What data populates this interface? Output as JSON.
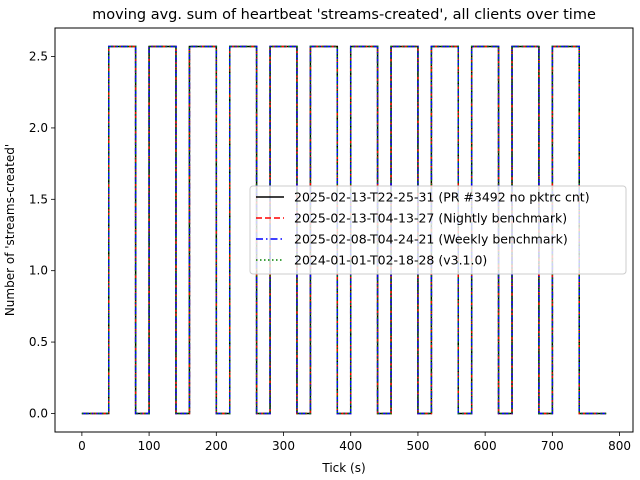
{
  "chart_data": {
    "type": "line",
    "title": "moving avg. sum of heartbeat 'streams-created', all clients over time",
    "xlabel": "Tick (s)",
    "ylabel": "Number of 'streams-created'",
    "xlim": [
      -40,
      820
    ],
    "ylim": [
      -0.13,
      2.7
    ],
    "xticks": [
      0,
      100,
      200,
      300,
      400,
      500,
      600,
      700,
      800
    ],
    "xtick_labels": [
      "0",
      "100",
      "200",
      "300",
      "400",
      "500",
      "600",
      "700",
      "800"
    ],
    "yticks": [
      0.0,
      0.5,
      1.0,
      1.5,
      2.0,
      2.5
    ],
    "ytick_labels": [
      "0.0",
      "0.5",
      "1.0",
      "1.5",
      "2.0",
      "2.5"
    ],
    "grid": false,
    "legend_position": "center-right",
    "series": [
      {
        "name": "2025-02-13-T22-25-31 (PR #3492 no pktrc cnt)",
        "color": "#000000",
        "style": "solid",
        "x": [
          0,
          40,
          40,
          80,
          80,
          100,
          100,
          140,
          140,
          160,
          160,
          200,
          200,
          220,
          220,
          260,
          260,
          280,
          280,
          320,
          320,
          340,
          340,
          380,
          380,
          400,
          400,
          440,
          440,
          460,
          460,
          500,
          500,
          520,
          520,
          560,
          560,
          580,
          580,
          620,
          620,
          640,
          640,
          680,
          680,
          700,
          700,
          740,
          740,
          780
        ],
        "y": [
          0,
          0,
          2.57,
          2.57,
          0,
          0,
          2.57,
          2.57,
          0,
          0,
          2.57,
          2.57,
          0,
          0,
          2.57,
          2.57,
          0,
          0,
          2.57,
          2.57,
          0,
          0,
          2.57,
          2.57,
          0,
          0,
          2.57,
          2.57,
          0,
          0,
          2.57,
          2.57,
          0,
          0,
          2.57,
          2.57,
          0,
          0,
          2.57,
          2.57,
          0,
          0,
          2.57,
          2.57,
          0,
          0,
          2.57,
          2.57,
          0,
          0
        ]
      },
      {
        "name": "2025-02-13-T04-13-27 (Nightly benchmark)",
        "color": "#ff0000",
        "style": "dashed",
        "x": [
          0,
          40,
          40,
          80,
          80,
          100,
          100,
          140,
          140,
          160,
          160,
          200,
          200,
          220,
          220,
          260,
          260,
          280,
          280,
          320,
          320,
          340,
          340,
          380,
          380,
          400,
          400,
          440,
          440,
          460,
          460,
          500,
          500,
          520,
          520,
          560,
          560,
          580,
          580,
          620,
          620,
          640,
          640,
          680,
          680,
          700,
          700,
          740,
          740,
          780
        ],
        "y": [
          0,
          0,
          2.57,
          2.57,
          0,
          0,
          2.57,
          2.57,
          0,
          0,
          2.57,
          2.57,
          0,
          0,
          2.57,
          2.57,
          0,
          0,
          2.57,
          2.57,
          0,
          0,
          2.57,
          2.57,
          0,
          0,
          2.57,
          2.57,
          0,
          0,
          2.57,
          2.57,
          0,
          0,
          2.57,
          2.57,
          0,
          0,
          2.57,
          2.57,
          0,
          0,
          2.57,
          2.57,
          0,
          0,
          2.57,
          2.57,
          0,
          0
        ]
      },
      {
        "name": "2025-02-08-T04-24-21 (Weekly benchmark)",
        "color": "#0000ff",
        "style": "dashdot",
        "x": [
          0,
          40,
          40,
          80,
          80,
          100,
          100,
          140,
          140,
          160,
          160,
          200,
          200,
          220,
          220,
          260,
          260,
          280,
          280,
          320,
          320,
          340,
          340,
          380,
          380,
          400,
          400,
          440,
          440,
          460,
          460,
          500,
          500,
          520,
          520,
          560,
          560,
          580,
          580,
          620,
          620,
          640,
          640,
          680,
          680,
          700,
          700,
          740,
          740,
          780
        ],
        "y": [
          0,
          0,
          2.57,
          2.57,
          0,
          0,
          2.57,
          2.57,
          0,
          0,
          2.57,
          2.57,
          0,
          0,
          2.57,
          2.57,
          0,
          0,
          2.57,
          2.57,
          0,
          0,
          2.57,
          2.57,
          0,
          0,
          2.57,
          2.57,
          0,
          0,
          2.57,
          2.57,
          0,
          0,
          2.57,
          2.57,
          0,
          0,
          2.57,
          2.57,
          0,
          0,
          2.57,
          2.57,
          0,
          0,
          2.57,
          2.57,
          0,
          0
        ]
      },
      {
        "name": "2024-01-01-T02-18-28 (v3.1.0)",
        "color": "#008000",
        "style": "dotted",
        "x": [
          0,
          40,
          40,
          80,
          80,
          100,
          100,
          140,
          140,
          160,
          160,
          200,
          200,
          220,
          220,
          260,
          260,
          280,
          280,
          320,
          320,
          340,
          340,
          380,
          380,
          400,
          400,
          440,
          440,
          460,
          460,
          500,
          500,
          520,
          520,
          560,
          560,
          580,
          580,
          620,
          620,
          640,
          640,
          680,
          680,
          700,
          700,
          740,
          740,
          780
        ],
        "y": [
          0,
          0,
          2.57,
          2.57,
          0,
          0,
          2.57,
          2.57,
          0,
          0,
          2.57,
          2.57,
          0,
          0,
          2.57,
          2.57,
          0,
          0,
          2.57,
          2.57,
          0,
          0,
          2.57,
          2.57,
          0,
          0,
          2.57,
          2.57,
          0,
          0,
          2.57,
          2.57,
          0,
          0,
          2.57,
          2.57,
          0,
          0,
          2.57,
          2.57,
          0,
          0,
          2.57,
          2.57,
          0,
          0,
          2.57,
          2.57,
          0,
          0
        ]
      }
    ]
  }
}
